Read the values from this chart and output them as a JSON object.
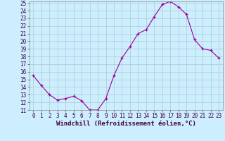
{
  "x": [
    0,
    1,
    2,
    3,
    4,
    5,
    6,
    7,
    8,
    9,
    10,
    11,
    12,
    13,
    14,
    15,
    16,
    17,
    18,
    19,
    20,
    21,
    22,
    23
  ],
  "y": [
    15.5,
    14.2,
    13.0,
    12.3,
    12.5,
    12.8,
    12.2,
    11.0,
    11.0,
    12.5,
    15.5,
    17.8,
    19.3,
    21.0,
    21.5,
    23.2,
    24.8,
    25.2,
    24.5,
    23.5,
    20.2,
    19.0,
    18.8,
    17.8
  ],
  "line_color": "#990099",
  "marker": "+",
  "background_color": "#cceeff",
  "grid_color": "#aacccc",
  "xlabel": "Windchill (Refroidissement éolien,°C)",
  "xlabel_fontsize": 6.5,
  "tick_fontsize": 5.5,
  "ylim": [
    11,
    25
  ],
  "xlim_min": -0.5,
  "xlim_max": 23.5,
  "yticks": [
    11,
    12,
    13,
    14,
    15,
    16,
    17,
    18,
    19,
    20,
    21,
    22,
    23,
    24,
    25
  ],
  "xticks": [
    0,
    1,
    2,
    3,
    4,
    5,
    6,
    7,
    8,
    9,
    10,
    11,
    12,
    13,
    14,
    15,
    16,
    17,
    18,
    19,
    20,
    21,
    22,
    23
  ]
}
